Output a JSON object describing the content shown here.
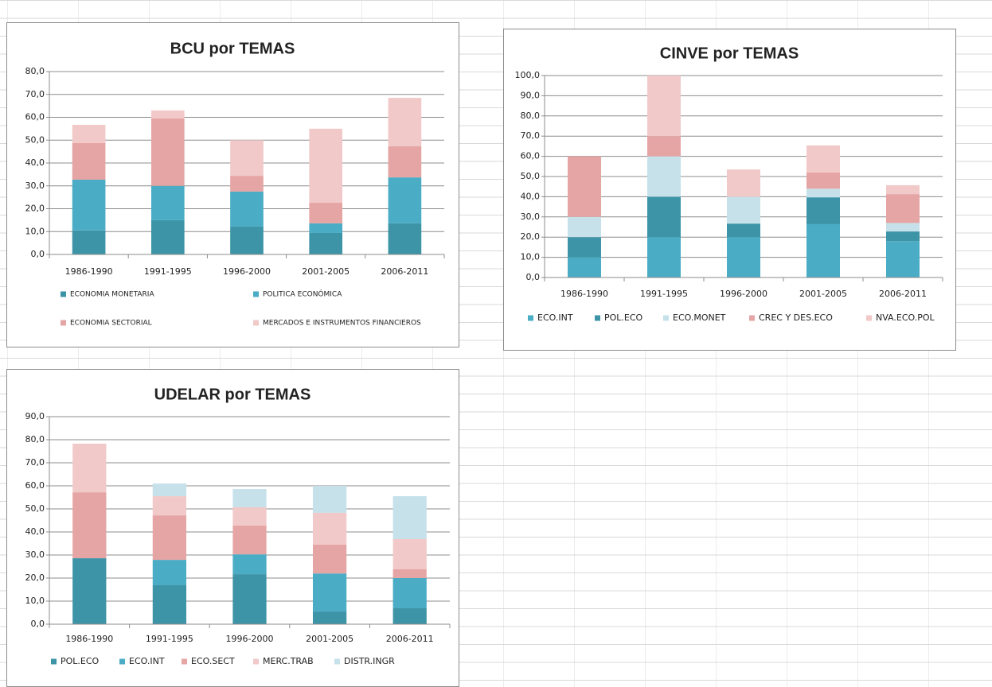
{
  "chart_data": [
    {
      "type": "bar",
      "stacked": true,
      "title": "BCU por TEMAS",
      "categories": [
        "1986-1990",
        "1991-1995",
        "1996-2000",
        "2001-2005",
        "2006-2011"
      ],
      "series": [
        {
          "name": "ECONOMIA MONETARIA",
          "color": "#3e94a7",
          "values": [
            10.5,
            15,
            12.2,
            9.4,
            13.6
          ]
        },
        {
          "name": "POLITICA ECONÓMICA",
          "color": "#4bacc6",
          "values": [
            22.2,
            15,
            15.3,
            4.2,
            20.1
          ]
        },
        {
          "name": "ECONOMIA SECTORIAL",
          "color": "#e6a5a5",
          "values": [
            16,
            29.5,
            6.9,
            9,
            13.6
          ]
        },
        {
          "name": "MERCADOS E INSTRUMENTOS FINANCIEROS",
          "color": "#f2c9c9",
          "values": [
            8,
            3.5,
            15.6,
            32.4,
            21.2
          ]
        }
      ],
      "ylim": [
        0,
        80
      ],
      "yticks": [
        {
          "value": 0,
          "label": "0,0"
        },
        {
          "value": 10,
          "label": "10,0"
        },
        {
          "value": 20,
          "label": "20,0"
        },
        {
          "value": 30,
          "label": "30,0"
        },
        {
          "value": 40,
          "label": "40,0"
        },
        {
          "value": 50,
          "label": "50,0"
        },
        {
          "value": 60,
          "label": "60,0"
        },
        {
          "value": 70,
          "label": "70,0"
        },
        {
          "value": 80,
          "label": "80,0"
        }
      ],
      "grid": true,
      "legend": "bottom"
    },
    {
      "type": "bar",
      "stacked": true,
      "title": "CINVE por TEMAS",
      "categories": [
        "1986-1990",
        "1991-1995",
        "1996-2000",
        "2001-2005",
        "2006-2011"
      ],
      "series": [
        {
          "name": "ECO.INT",
          "color": "#4bacc6",
          "values": [
            10,
            20,
            20,
            26.4,
            18
          ]
        },
        {
          "name": "POL.ECO",
          "color": "#3e94a7",
          "values": [
            10,
            20,
            6.7,
            13.3,
            4.8
          ]
        },
        {
          "name": "ECO.MONET",
          "color": "#c6e1ea",
          "values": [
            10,
            20,
            13.3,
            4.3,
            4.2
          ]
        },
        {
          "name": "CREC Y DES.ECO",
          "color": "#e6a5a5",
          "values": [
            30,
            10,
            0,
            8,
            14.3
          ]
        },
        {
          "name": "NVA.ECO.POL",
          "color": "#f2c9c9",
          "values": [
            0,
            30,
            13.5,
            13.4,
            4.4
          ]
        }
      ],
      "ylim": [
        0,
        100
      ],
      "yticks": [
        {
          "value": 0,
          "label": "0,0"
        },
        {
          "value": 10,
          "label": "10,0"
        },
        {
          "value": 20,
          "label": "20,0"
        },
        {
          "value": 30,
          "label": "30,0"
        },
        {
          "value": 40,
          "label": "40,0"
        },
        {
          "value": 50,
          "label": "50,0"
        },
        {
          "value": 60,
          "label": "60,0"
        },
        {
          "value": 70,
          "label": "70,0"
        },
        {
          "value": 80,
          "label": "80,0"
        },
        {
          "value": 90,
          "label": "90,0"
        },
        {
          "value": 100,
          "label": "100,0"
        }
      ],
      "grid": true,
      "legend": "bottom"
    },
    {
      "type": "bar",
      "stacked": true,
      "title": "UDELAR por TEMAS",
      "categories": [
        "1986-1990",
        "1991-1995",
        "1996-2000",
        "2001-2005",
        "2006-2011"
      ],
      "series": [
        {
          "name": "POL.ECO",
          "color": "#3e94a7",
          "values": [
            28.6,
            16.9,
            21.7,
            5.5,
            6.9
          ]
        },
        {
          "name": "ECO.INT",
          "color": "#4bacc6",
          "values": [
            0,
            11,
            8.6,
            16.5,
            13.1
          ]
        },
        {
          "name": "ECO.SECT",
          "color": "#e6a5a5",
          "values": [
            28.6,
            19.3,
            12.5,
            12.5,
            3.8
          ]
        },
        {
          "name": "MERC.TRAB",
          "color": "#f2c9c9",
          "values": [
            21.1,
            8.3,
            7.9,
            13.8,
            13.1
          ]
        },
        {
          "name": "DISTR.INGR",
          "color": "#c6e1ea",
          "values": [
            0,
            5.5,
            7.9,
            11.7,
            18.6
          ]
        }
      ],
      "ylim": [
        0,
        90
      ],
      "yticks": [
        {
          "value": 0,
          "label": "0,0"
        },
        {
          "value": 10,
          "label": "10,0"
        },
        {
          "value": 20,
          "label": "20,0"
        },
        {
          "value": 30,
          "label": "30,0"
        },
        {
          "value": 40,
          "label": "40,0"
        },
        {
          "value": 50,
          "label": "50,0"
        },
        {
          "value": 60,
          "label": "60,0"
        },
        {
          "value": 70,
          "label": "70,0"
        },
        {
          "value": 80,
          "label": "80,0"
        },
        {
          "value": 90,
          "label": "90,0"
        }
      ],
      "grid": true,
      "legend": "bottom"
    }
  ]
}
